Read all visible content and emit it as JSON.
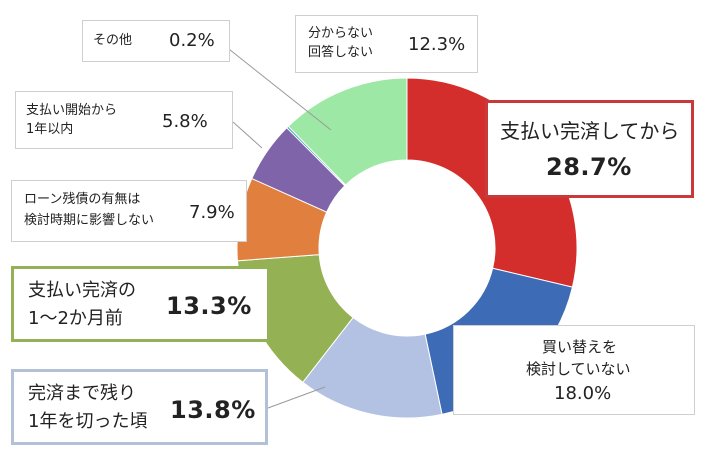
{
  "chart_data": {
    "type": "pie",
    "donut": true,
    "categories": [
      "支払い完済してから",
      "買い替えを検討していない",
      "完済まで残り1年を切った頃",
      "支払い完済の1〜2か月前",
      "ローン残債の有無は検討時期に影響しない",
      "支払い開始から1年以内",
      "その他",
      "分からない回答しない"
    ],
    "values": [
      28.7,
      18.0,
      13.8,
      13.3,
      7.9,
      5.8,
      0.2,
      12.3
    ],
    "colors": [
      "#d42e2c",
      "#3e6bb5",
      "#b3c1e3",
      "#94b153",
      "#e07f3e",
      "#7f64a9",
      "#3ea7bd",
      "#9ee8a6"
    ]
  },
  "labels": {
    "other": {
      "text": "その他",
      "pct": "0.2%"
    },
    "unknown": {
      "line1": "分からない",
      "line2": "回答しない",
      "pct": "12.3%"
    },
    "start": {
      "line1": "支払い開始から",
      "line2": "1年以内",
      "pct": "5.8%"
    },
    "loan": {
      "line1": "ローン残債の有無は",
      "line2": "検討時期に影響しない",
      "pct": "7.9%"
    },
    "paid": {
      "text": "支払い完済してから",
      "pct": "28.7%"
    },
    "twelve": {
      "line1": "支払い完済の",
      "line2": "1〜2か月前",
      "pct": "13.3%"
    },
    "lastyear": {
      "line1": "完済まで残り",
      "line2": "1年を切った頃",
      "pct": "13.8%"
    },
    "replace": {
      "line1": "買い替えを",
      "line2": "検討していない",
      "pct": "18.0%"
    }
  }
}
